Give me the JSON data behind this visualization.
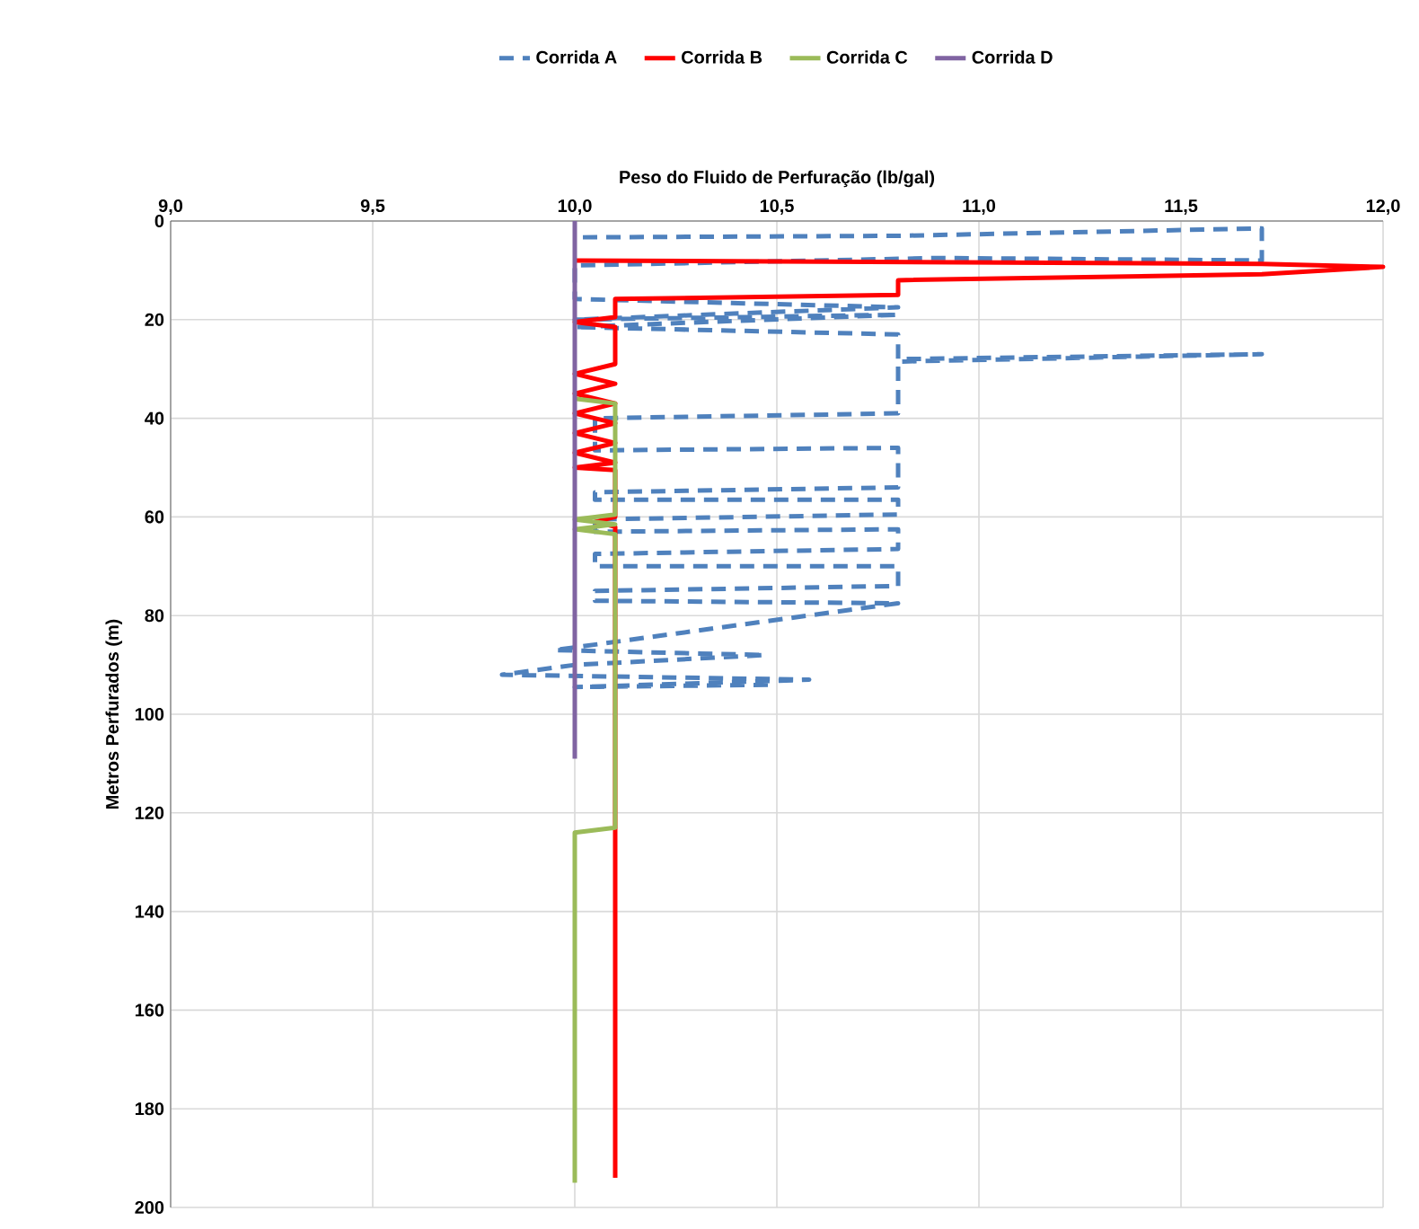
{
  "chart_data": {
    "type": "line",
    "xlabel": "Peso do Fluido de Perfuração (lb/gal)",
    "ylabel": "Metros Perfurados (m)",
    "xlim": [
      9.0,
      12.0
    ],
    "ylim": [
      200,
      0
    ],
    "xticks": [
      {
        "value": 9.0,
        "label": "9,0"
      },
      {
        "value": 9.5,
        "label": "9,5"
      },
      {
        "value": 10.0,
        "label": "10,0"
      },
      {
        "value": 10.5,
        "label": "10,5"
      },
      {
        "value": 11.0,
        "label": "11,0"
      },
      {
        "value": 11.5,
        "label": "11,5"
      },
      {
        "value": 12.0,
        "label": "12,0"
      }
    ],
    "yticks": [
      0,
      20,
      40,
      60,
      80,
      100,
      120,
      140,
      160,
      180,
      200
    ],
    "grid": true,
    "legend": "top",
    "marker": "none",
    "series": [
      {
        "name": "Corrida A",
        "color": "#4f81bd",
        "line_style": "dashed",
        "x": [
          10.02,
          10.8,
          11.7,
          11.7,
          10.9,
          10.0,
          10.0,
          10.8,
          10.0,
          10.8,
          10.0,
          10.8,
          10.8,
          11.7,
          10.8,
          10.8,
          10.05,
          10.05,
          10.8,
          10.8,
          10.05,
          10.05,
          10.8,
          10.8,
          10.05,
          10.05,
          10.8,
          10.8,
          10.05,
          10.05,
          10.8,
          10.8,
          10.05,
          10.05,
          10.8,
          9.95,
          10.47,
          10.0,
          9.82,
          10.58,
          10.0,
          10.5
        ],
        "values": [
          3.3,
          3.0,
          1.5,
          8.0,
          7.5,
          9.0,
          15.8,
          17.5,
          20.0,
          19.0,
          21.5,
          23.0,
          28.0,
          27.0,
          28.5,
          39.0,
          40.0,
          46.5,
          46.0,
          54.0,
          55.0,
          56.5,
          56.5,
          59.5,
          60.5,
          63.0,
          62.5,
          66.5,
          67.5,
          70.0,
          70.0,
          74.0,
          75.0,
          77.0,
          77.5,
          87.0,
          88.0,
          90.0,
          92.0,
          93.0,
          94.5,
          94.0
        ]
      },
      {
        "name": "Corrida B",
        "color": "#ff0000",
        "line_style": "solid",
        "x": [
          10.0,
          11.7,
          12.0,
          11.7,
          10.8,
          10.8,
          10.1,
          10.1,
          10.0,
          10.1,
          10.1,
          10.0,
          10.1,
          10.0,
          10.1,
          10.0,
          10.1,
          10.0,
          10.1,
          10.0,
          10.1,
          10.0,
          10.1,
          10.1,
          10.05,
          10.1,
          10.1
        ],
        "values": [
          8.0,
          8.7,
          9.3,
          10.8,
          12.0,
          15.0,
          15.8,
          19.5,
          20.5,
          21.5,
          29.0,
          31.0,
          33.0,
          35.0,
          37.0,
          39.0,
          41.0,
          43.0,
          45.0,
          47.0,
          49.0,
          50.0,
          50.5,
          60.0,
          61.0,
          62.0,
          194.0
        ]
      },
      {
        "name": "Corrida C",
        "color": "#9bbb59",
        "line_style": "solid",
        "x": [
          10.0,
          10.1,
          10.1,
          10.0,
          10.1,
          10.0,
          10.1,
          10.1,
          10.0,
          10.0
        ],
        "values": [
          36.0,
          37.0,
          59.5,
          60.5,
          61.5,
          62.5,
          63.5,
          123.0,
          124.0,
          195.0
        ]
      },
      {
        "name": "Corrida D",
        "color": "#8064a2",
        "line_style": "solid",
        "x": [
          10.0,
          10.0
        ],
        "values": [
          0.0,
          109.0
        ]
      }
    ]
  }
}
